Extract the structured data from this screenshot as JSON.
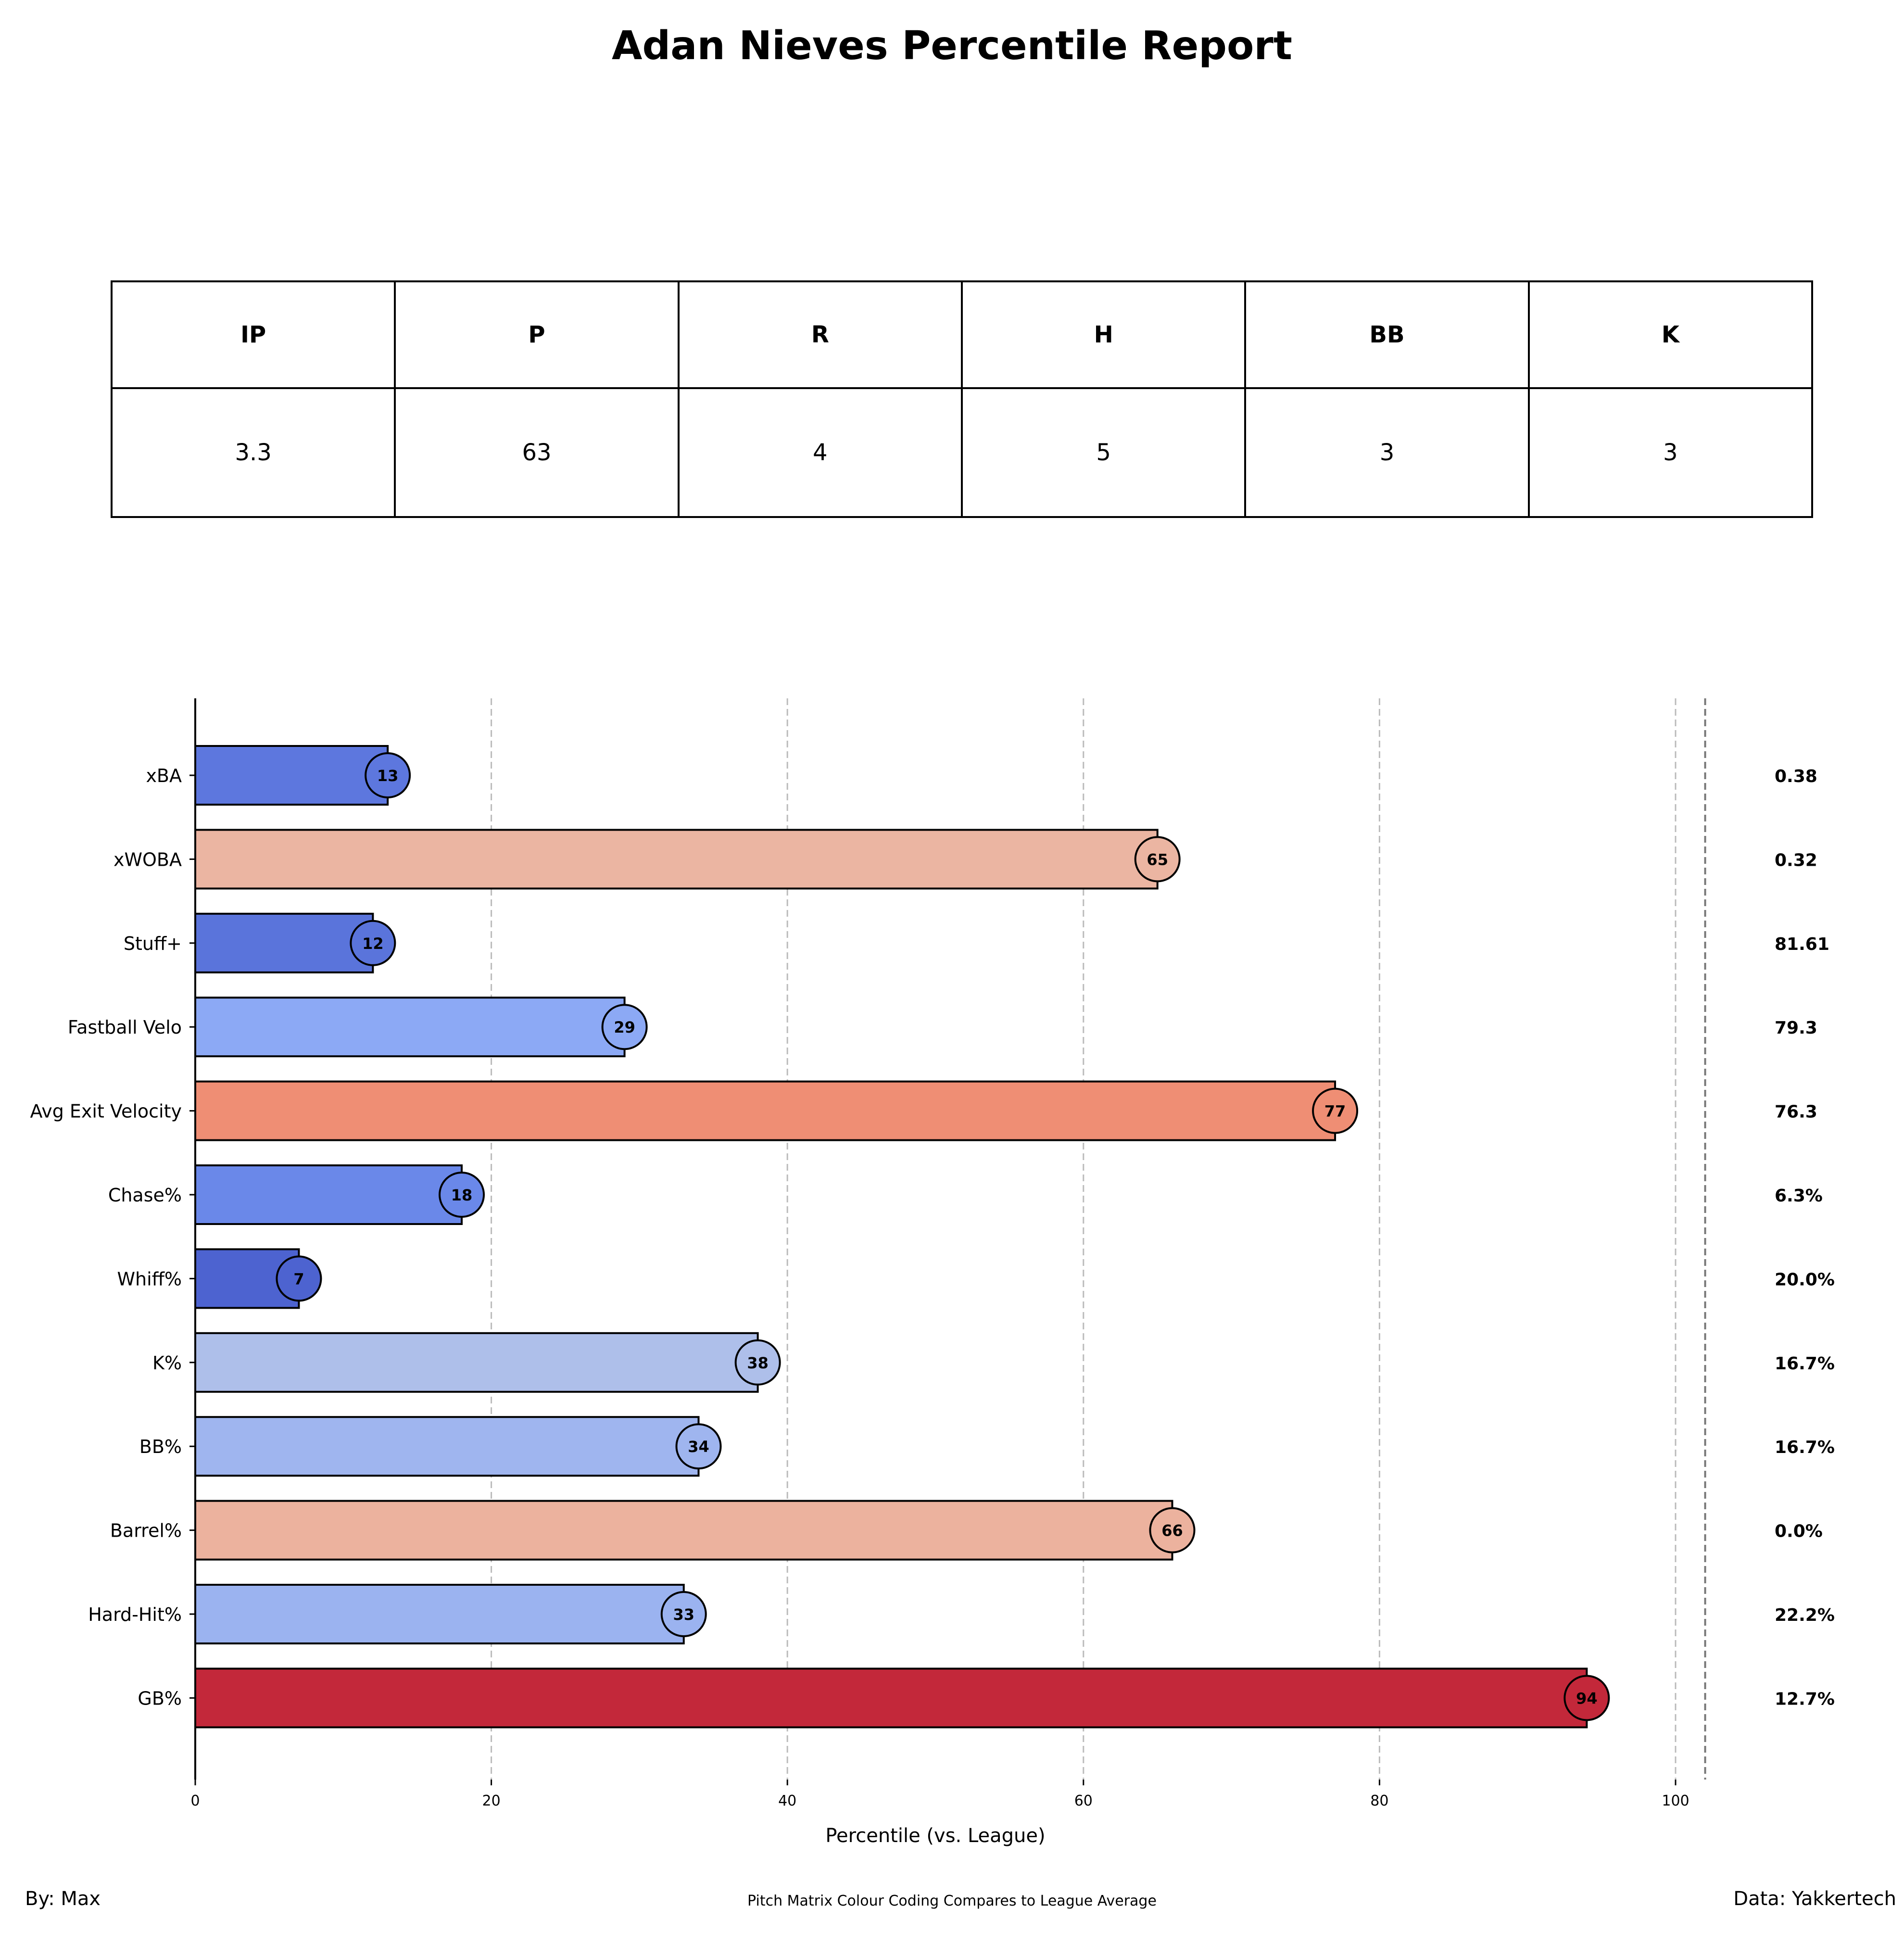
{
  "title": "Adan Nieves Percentile Report",
  "stats_table": {
    "headers": [
      "IP",
      "P",
      "R",
      "H",
      "BB",
      "K"
    ],
    "values": [
      "3.3",
      "63",
      "4",
      "5",
      "3",
      "3"
    ]
  },
  "chart_data": {
    "type": "bar",
    "orientation": "horizontal",
    "xlabel": "Percentile (vs. League)",
    "ylabel": "",
    "xlim": [
      0,
      102
    ],
    "x_ticks": [
      0,
      20,
      40,
      60,
      80,
      100
    ],
    "grid": "vertical dashed",
    "categories": [
      "xBA",
      "xWOBA",
      "Stuff+",
      "Fastball Velo",
      "Avg Exit Velocity",
      "Chase%",
      "Whiff%",
      "K%",
      "BB%",
      "Barrel%",
      "Hard-Hit%",
      "GB%"
    ],
    "values": [
      13,
      65,
      12,
      29,
      77,
      18,
      7,
      38,
      34,
      66,
      33,
      94
    ],
    "raw_values": [
      "0.38",
      "0.32",
      "81.61",
      "79.3",
      "76.3",
      "6.3%",
      "20.0%",
      "16.7%",
      "16.7%",
      "0.0%",
      "22.2%",
      "12.7%"
    ],
    "colormap": "coolwarm"
  },
  "footer": {
    "byline": "By: Max",
    "note": "Pitch Matrix Colour Coding Compares to League Average",
    "source": "Data: Yakkertech"
  }
}
